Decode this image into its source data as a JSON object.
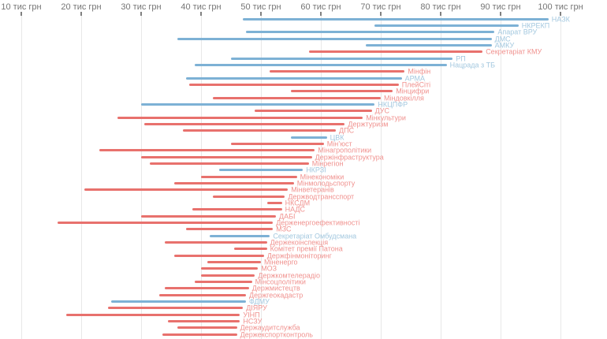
{
  "chart_data": {
    "type": "bar",
    "variant": "horizontal-range",
    "title": "",
    "xlabel": "",
    "ylabel": "",
    "legend": "none",
    "grid": "vertical-light",
    "axis": {
      "unit": "тис грн",
      "min": 10,
      "max": 100,
      "ticks": [
        {
          "value": 10,
          "label": "10 тис грн"
        },
        {
          "value": 20,
          "label": "20 тис грн"
        },
        {
          "value": 30,
          "label": "30 тис грн"
        },
        {
          "value": 40,
          "label": "40 тис грн"
        },
        {
          "value": 50,
          "label": "50 тис грн"
        },
        {
          "value": 60,
          "label": "60 тис грн"
        },
        {
          "value": 70,
          "label": "70 тис грн"
        },
        {
          "value": 80,
          "label": "80 тис грн"
        },
        {
          "value": 90,
          "label": "90 тис грн"
        },
        {
          "value": 100,
          "label": "100 тис грн"
        }
      ]
    },
    "colors": {
      "blue": "#7db1d5",
      "red": "#e8716d",
      "blue_label": "#a3c8df",
      "red_label": "#f0928f",
      "axis_text": "#757575",
      "tick": "#808080",
      "gridline": "#e8e8e8"
    },
    "rows": [
      {
        "label": "НАЗК",
        "color": "blue",
        "min": 47,
        "max": 98
      },
      {
        "label": "НКРЕКП",
        "color": "blue",
        "min": 69,
        "max": 93
      },
      {
        "label": "Апарат ВРУ",
        "color": "blue",
        "min": 47.5,
        "max": 89
      },
      {
        "label": "ДМС",
        "color": "blue",
        "min": 36,
        "max": 88.5
      },
      {
        "label": "АМКУ",
        "color": "blue",
        "min": 67.5,
        "max": 88.5
      },
      {
        "label": "Секретаріат КМУ",
        "color": "red",
        "min": 58,
        "max": 87
      },
      {
        "label": "РП",
        "color": "blue",
        "min": 45,
        "max": 82
      },
      {
        "label": "Нацрада з ТБ",
        "color": "blue",
        "min": 39,
        "max": 81
      },
      {
        "label": "Мінфін",
        "color": "red",
        "min": 51.5,
        "max": 74
      },
      {
        "label": "АРМА",
        "color": "blue",
        "min": 37.5,
        "max": 73.5
      },
      {
        "label": "ПлейСіті",
        "color": "red",
        "min": 38,
        "max": 73
      },
      {
        "label": "Мінцифри",
        "color": "red",
        "min": 55,
        "max": 72
      },
      {
        "label": "Міндовкілля",
        "color": "red",
        "min": 42,
        "max": 70
      },
      {
        "label": "НКЦПФР",
        "color": "blue",
        "min": 30,
        "max": 69
      },
      {
        "label": "ДУС",
        "color": "red",
        "min": 49,
        "max": 68.5
      },
      {
        "label": "Мінкультури",
        "color": "red",
        "min": 26,
        "max": 67
      },
      {
        "label": "Держтуризм",
        "color": "red",
        "min": 30.5,
        "max": 64
      },
      {
        "label": "ДПС",
        "color": "red",
        "min": 37,
        "max": 62.5
      },
      {
        "label": "ЦВК",
        "color": "blue",
        "min": 55,
        "max": 61
      },
      {
        "label": "Мін’юст",
        "color": "red",
        "min": 45,
        "max": 60.5
      },
      {
        "label": "Мінагрополітики",
        "color": "red",
        "min": 23,
        "max": 59
      },
      {
        "label": "Держінфраструктура",
        "color": "red",
        "min": 30,
        "max": 58.5
      },
      {
        "label": "Мінрегіон",
        "color": "red",
        "min": 31.5,
        "max": 58
      },
      {
        "label": "НКРЗІ",
        "color": "blue",
        "min": 43,
        "max": 57
      },
      {
        "label": "Мінекономіки",
        "color": "red",
        "min": 40,
        "max": 56
      },
      {
        "label": "Мінмолодьспорту",
        "color": "red",
        "min": 35.5,
        "max": 55.5
      },
      {
        "label": "Мінветеранів",
        "color": "red",
        "min": 20.5,
        "max": 54.5
      },
      {
        "label": "Держводтрансспорт",
        "color": "red",
        "min": 42,
        "max": 54
      },
      {
        "label": "НКСДМ",
        "color": "red",
        "min": 51,
        "max": 53.5
      },
      {
        "label": "НАДС",
        "color": "red",
        "min": 38.5,
        "max": 53.5
      },
      {
        "label": "ДАБІ",
        "color": "red",
        "min": 30,
        "max": 52.5
      },
      {
        "label": "Держенергоефективності",
        "color": "red",
        "min": 16,
        "max": 52
      },
      {
        "label": "МЗС",
        "color": "red",
        "min": 37.5,
        "max": 52
      },
      {
        "label": "Секретаріат Омбудсмана",
        "color": "blue",
        "min": 41.5,
        "max": 51.5
      },
      {
        "label": "Держекоінспекція",
        "color": "red",
        "min": 34,
        "max": 51
      },
      {
        "label": "Комітет премії Патона",
        "color": "red",
        "min": 45.5,
        "max": 51
      },
      {
        "label": "Держфінмоніторинг",
        "color": "red",
        "min": 35.5,
        "max": 50.5
      },
      {
        "label": "Міненерго",
        "color": "red",
        "min": 41,
        "max": 50
      },
      {
        "label": "МОЗ",
        "color": "red",
        "min": 40,
        "max": 49.5
      },
      {
        "label": "Держкомтелерадіо",
        "color": "red",
        "min": 40,
        "max": 49
      },
      {
        "label": "Мінсоцполітики",
        "color": "red",
        "min": 39,
        "max": 48.5
      },
      {
        "label": "Держмистецтв",
        "color": "red",
        "min": 34,
        "max": 48
      },
      {
        "label": "Держгеокадастр",
        "color": "red",
        "min": 33,
        "max": 47.5
      },
      {
        "label": "ФДМУ",
        "color": "blue",
        "min": 25,
        "max": 47.5
      },
      {
        "label": "ДІЯРУ",
        "color": "red",
        "min": 24.5,
        "max": 47
      },
      {
        "label": "УІНП",
        "color": "red",
        "min": 17.5,
        "max": 46.5
      },
      {
        "label": "НСЗУ",
        "color": "red",
        "min": 34.5,
        "max": 46.5
      },
      {
        "label": "Держаудитслужба",
        "color": "red",
        "min": 36,
        "max": 46
      },
      {
        "label": "Держекспортконтроль",
        "color": "red",
        "min": 33.5,
        "max": 46
      }
    ]
  }
}
